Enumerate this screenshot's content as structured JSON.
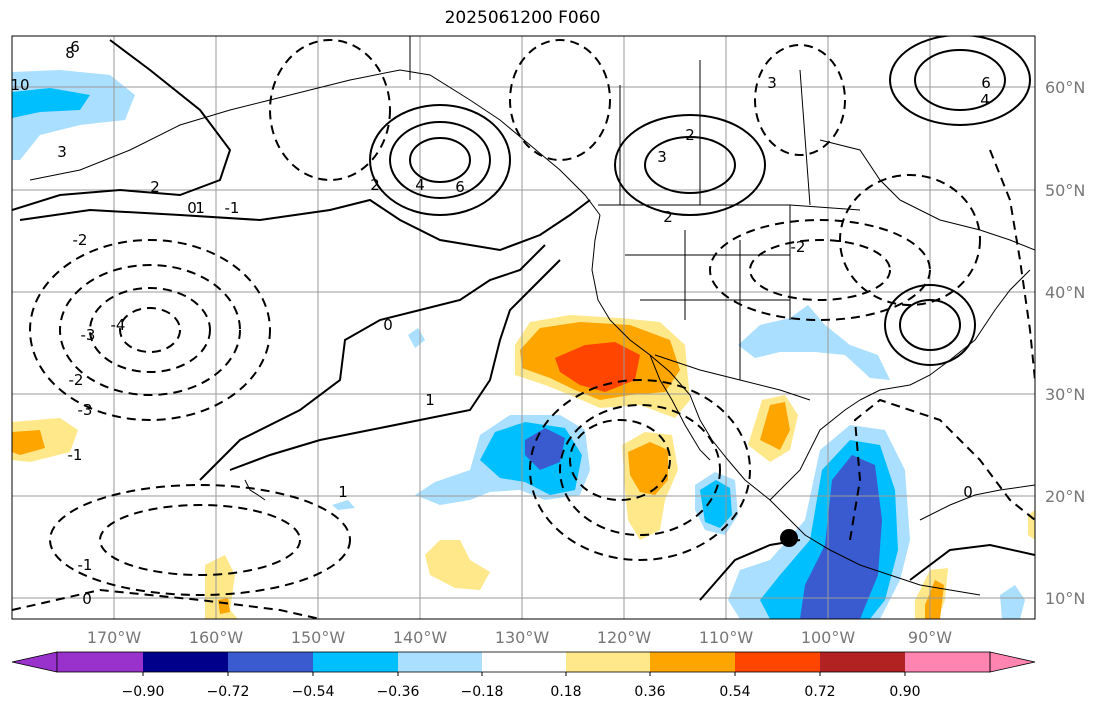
{
  "title": "2025061200 F060",
  "map": {
    "lon_labels": [
      "170°W",
      "160°W",
      "150°W",
      "140°W",
      "130°W",
      "120°W",
      "110°W",
      "100°W",
      "90°W"
    ],
    "lat_labels": [
      "60°N",
      "50°N",
      "40°N",
      "30°N",
      "20°N",
      "10°N"
    ],
    "gridlines": true,
    "storm_marker": "black-dot"
  },
  "colorbar": {
    "ticks": [
      "−0.90",
      "−0.72",
      "−0.54",
      "−0.36",
      "−0.18",
      "0.18",
      "0.36",
      "0.54",
      "0.72",
      "0.90"
    ],
    "colors": [
      "#9932cc",
      "#00008b",
      "#3a5bd0",
      "#00bfff",
      "#aadfff",
      "#ffffff",
      "#ffe88a",
      "#ffa500",
      "#ff4500",
      "#b22222",
      "#ff85b0"
    ]
  },
  "contour_labels": [
    "6",
    "8",
    "10",
    "3",
    "2",
    "1",
    "0",
    "-1",
    "-2",
    "-3",
    "-4",
    "4",
    "2",
    "6",
    "3",
    "2",
    "-2",
    "-3",
    "-1",
    "0",
    "1",
    "1",
    "-1",
    "0",
    "2",
    "-2",
    "3",
    "4",
    "6",
    "0"
  ]
}
